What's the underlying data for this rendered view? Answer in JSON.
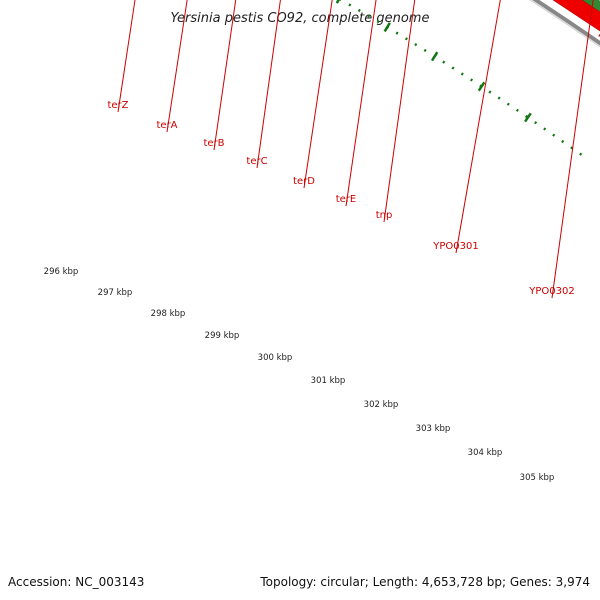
{
  "title": "Yersinia pestis CO92, complete genome",
  "footer": {
    "accession": "Accession: NC_003143",
    "summary": "Topology: circular; Length: 4,653,728 bp; Genes: 3,974"
  },
  "colors": {
    "cds": "#ee0000",
    "gene_green": "#33cc33",
    "gene_gray": "#bbbbbb",
    "gene_navy": "#333399",
    "gene_blue": "#0000ee",
    "gene_lime": "#ccff33",
    "gene_darkgreen": "#338833",
    "backbone": "#888888",
    "ticks": "#117711",
    "label": "#cc0000"
  },
  "scale_labels": [
    "296 kbp",
    "297 kbp",
    "298 kbp",
    "299 kbp",
    "300 kbp",
    "301 kbp",
    "302 kbp",
    "303 kbp",
    "304 kbp",
    "305 kbp"
  ],
  "gene_labels": [
    "terZ",
    "terA",
    "terB",
    "terC",
    "terD",
    "terE",
    "tnp",
    "YPO0301",
    "YPO0302"
  ]
}
